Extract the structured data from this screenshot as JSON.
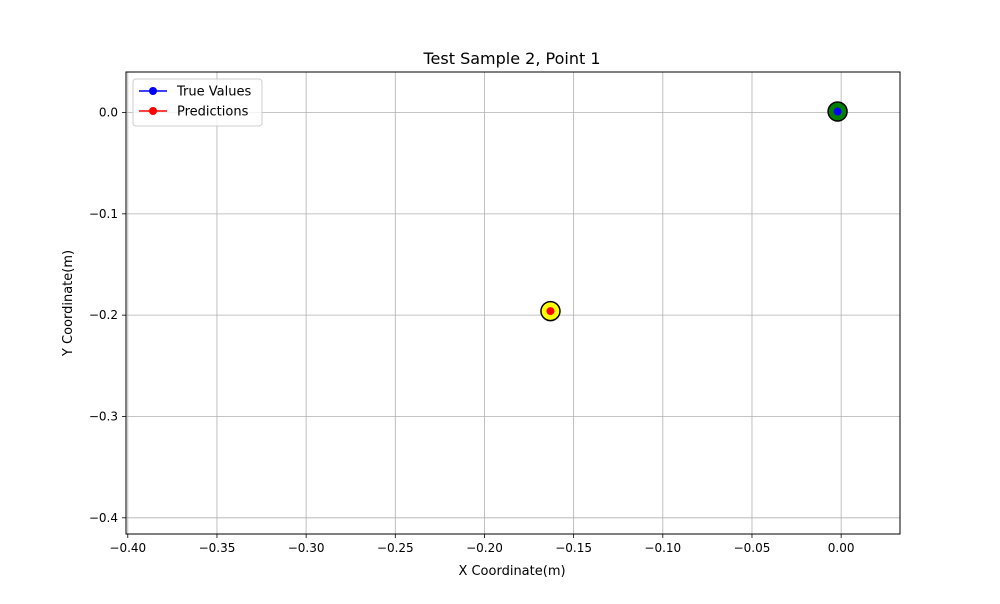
{
  "chart_data": {
    "type": "scatter",
    "title": "Test Sample 2, Point 1",
    "xlabel": "X Coordinate(m)",
    "ylabel": "Y Coordinate(m)",
    "xlim": [
      -0.401,
      0.033
    ],
    "ylim": [
      -0.416,
      0.04
    ],
    "xticks": [
      -0.4,
      -0.35,
      -0.3,
      -0.25,
      -0.2,
      -0.15,
      -0.1,
      -0.05,
      0.0
    ],
    "xtick_labels": [
      "−0.40",
      "−0.35",
      "−0.30",
      "−0.25",
      "−0.20",
      "−0.15",
      "−0.10",
      "−0.05",
      "0.00"
    ],
    "yticks": [
      0.0,
      -0.1,
      -0.2,
      -0.3,
      -0.4
    ],
    "ytick_labels": [
      "0.0",
      "−0.1",
      "−0.2",
      "−0.3",
      "−0.4"
    ],
    "grid": true,
    "legend_position": "top-left",
    "series": [
      {
        "name": "True Values",
        "color": "#0000ff",
        "marker": "circle",
        "halo_color": "#008000",
        "points": [
          {
            "x": -0.002,
            "y": 0.001
          }
        ]
      },
      {
        "name": "Predictions",
        "color": "#ff0000",
        "marker": "circle",
        "halo_color": "#ffff00",
        "points": [
          {
            "x": -0.163,
            "y": -0.196
          }
        ]
      }
    ]
  }
}
